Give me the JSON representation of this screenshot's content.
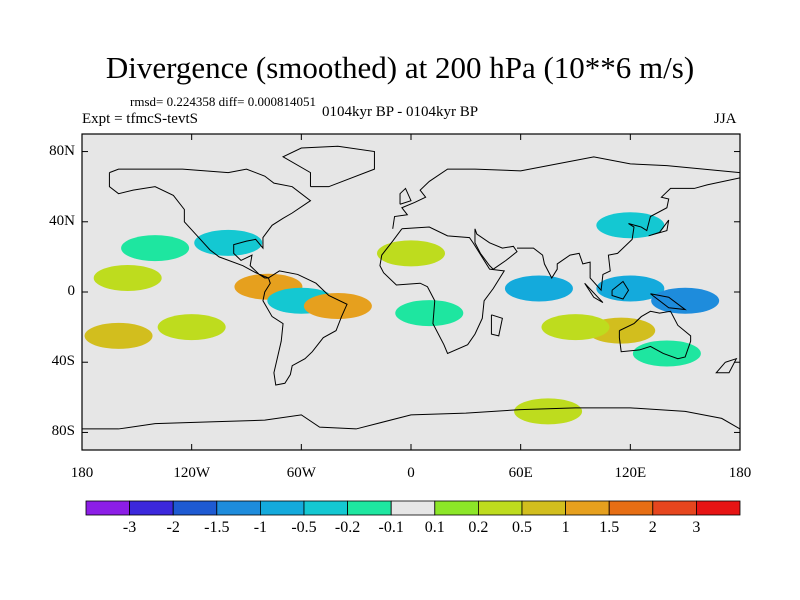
{
  "title": "Divergence (smoothed) at 200 hPa (10**6 m/s)",
  "stats": "rmsd= 0.224358 diff= 0.000814051",
  "experiment": "Expt = tfmcS-tevtS",
  "period": "0104kyr BP - 0104kyr BP",
  "season": "JJA",
  "map": {
    "projection": "cylindrical equidistant",
    "lon_range": [
      -180,
      180
    ],
    "lat_range": [
      -90,
      90
    ],
    "background_color": "#e6e6e6",
    "coastline_color": "#000000"
  },
  "axes": {
    "y_ticks": [
      {
        "lat": 80,
        "label": "80N"
      },
      {
        "lat": 40,
        "label": "40N"
      },
      {
        "lat": 0,
        "label": "0"
      },
      {
        "lat": -40,
        "label": "40S"
      },
      {
        "lat": -80,
        "label": "80S"
      }
    ],
    "x_ticks": [
      {
        "lon": -180,
        "label": "180"
      },
      {
        "lon": -120,
        "label": "120W"
      },
      {
        "lon": -60,
        "label": "60W"
      },
      {
        "lon": 0,
        "label": "0"
      },
      {
        "lon": 60,
        "label": "60E"
      },
      {
        "lon": 120,
        "label": "120E"
      },
      {
        "lon": 180,
        "label": "180"
      }
    ]
  },
  "colorbar": {
    "colors": [
      "#8c1ee6",
      "#3c28dc",
      "#1e5ad2",
      "#1e8cdc",
      "#14aadc",
      "#14c8d2",
      "#1ee6a0",
      "#e6e6e6",
      "#8ce628",
      "#bedc1e",
      "#d2be1e",
      "#e6a01e",
      "#e66e14",
      "#e6461e",
      "#e61414"
    ],
    "labels": [
      "-3",
      "-2",
      "-1.5",
      "-1",
      "-0.5",
      "-0.2",
      "-0.1",
      "0.1",
      "0.2",
      "0.5",
      "1",
      "1.5",
      "2",
      "3"
    ]
  },
  "chart_data": {
    "type": "heatmap",
    "variable": "Divergence (smoothed) at 200 hPa",
    "units": "10**6 m/s",
    "levels": [
      -3,
      -2,
      -1.5,
      -1,
      -0.5,
      -0.2,
      -0.1,
      0.1,
      0.2,
      0.5,
      1,
      1.5,
      2,
      3
    ],
    "approx_features": [
      {
        "lon": -140,
        "lat": 25,
        "value": -0.2
      },
      {
        "lon": -155,
        "lat": 8,
        "value": 0.2
      },
      {
        "lon": -160,
        "lat": -25,
        "value": 0.5
      },
      {
        "lon": -100,
        "lat": 28,
        "value": -0.5
      },
      {
        "lon": -120,
        "lat": -20,
        "value": 0.2
      },
      {
        "lon": -78,
        "lat": 3,
        "value": 1
      },
      {
        "lon": -60,
        "lat": -5,
        "value": -0.5
      },
      {
        "lon": -40,
        "lat": -8,
        "value": 1
      },
      {
        "lon": 0,
        "lat": 22,
        "value": 0.2
      },
      {
        "lon": 10,
        "lat": -12,
        "value": -0.2
      },
      {
        "lon": 70,
        "lat": 2,
        "value": -1
      },
      {
        "lon": 120,
        "lat": 2,
        "value": -1
      },
      {
        "lon": 150,
        "lat": -5,
        "value": -1.5
      },
      {
        "lon": 120,
        "lat": 38,
        "value": -0.5
      },
      {
        "lon": 115,
        "lat": -22,
        "value": 0.5
      },
      {
        "lon": 90,
        "lat": -20,
        "value": 0.2
      },
      {
        "lon": 140,
        "lat": -35,
        "value": -0.2
      },
      {
        "lon": 75,
        "lat": -68,
        "value": 0.2
      }
    ]
  }
}
